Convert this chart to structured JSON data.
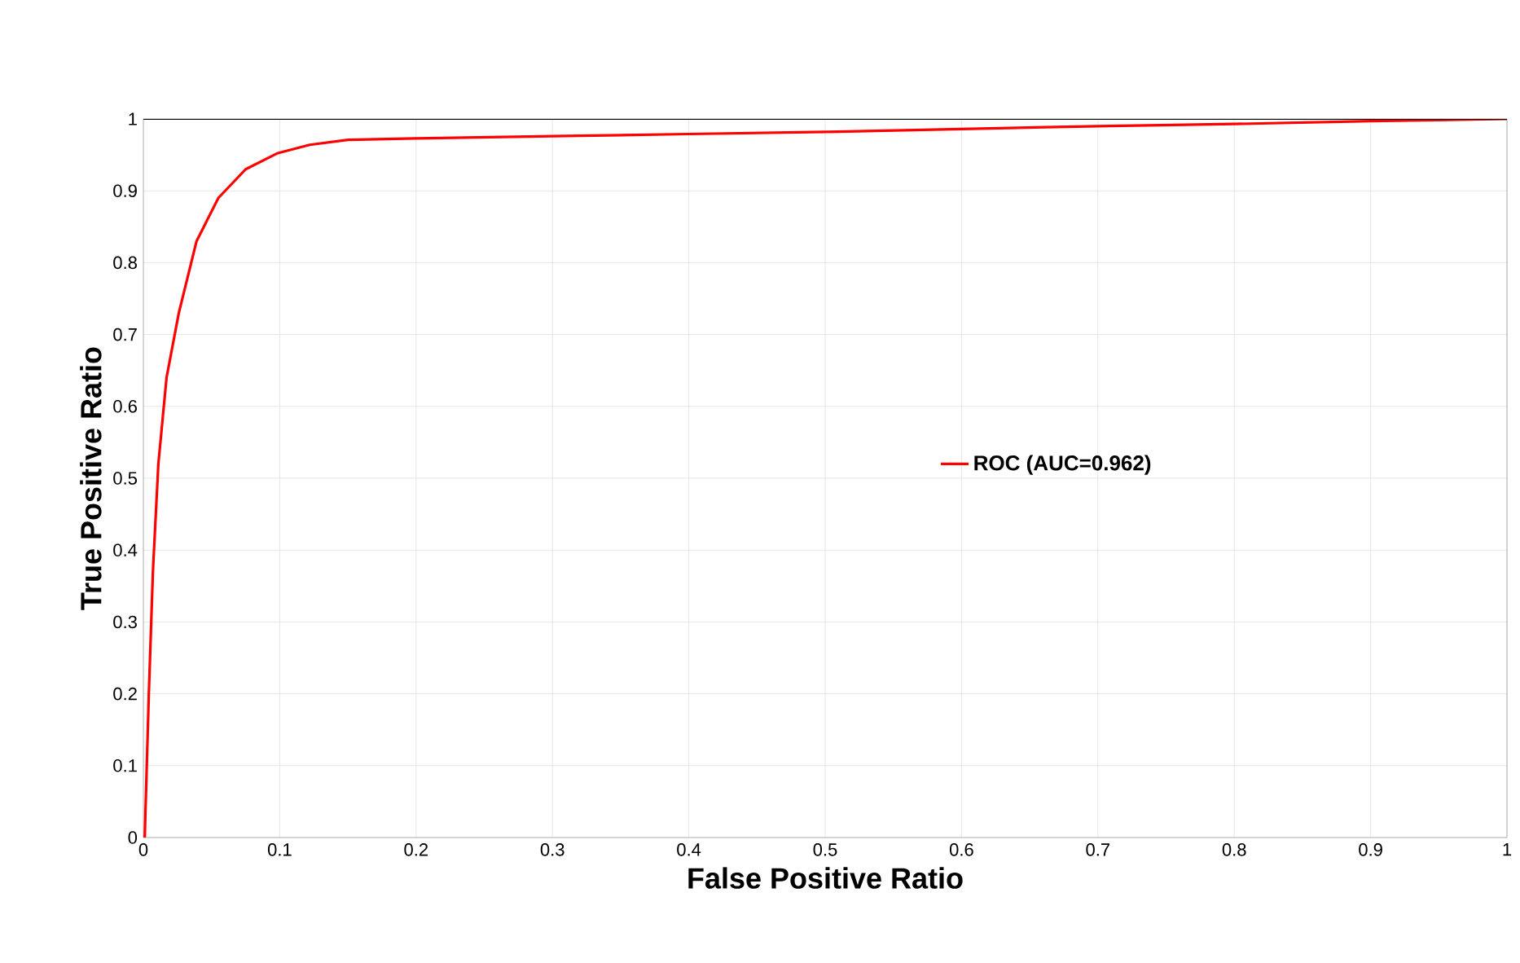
{
  "chart_data": {
    "type": "line",
    "xlabel": "False Positive Ratio",
    "ylabel": "True Positive Ratio",
    "xlim": [
      0,
      1
    ],
    "ylim": [
      0,
      1
    ],
    "xticks": [
      0,
      0.1,
      0.2,
      0.3,
      0.4,
      0.5,
      0.6,
      0.7,
      0.8,
      0.9,
      1
    ],
    "yticks": [
      0,
      0.1,
      0.2,
      0.3,
      0.4,
      0.5,
      0.6,
      0.7,
      0.8,
      0.9,
      1
    ],
    "grid": true,
    "legend": "right",
    "marker": "none",
    "line_style": "solid",
    "series": [
      {
        "name": "ROC (AUC=0.962)",
        "color": "#ff0000",
        "x": [
          0.001,
          0.004,
          0.007,
          0.011,
          0.017,
          0.026,
          0.039,
          0.055,
          0.075,
          0.098,
          0.122,
          0.15,
          0.2,
          0.3,
          0.4,
          0.5,
          0.6,
          0.7,
          0.8,
          0.9,
          1
        ],
        "values": [
          0,
          0.2,
          0.37,
          0.52,
          0.64,
          0.73,
          0.83,
          0.89,
          0.93,
          0.952,
          0.964,
          0.971,
          0.973,
          0.976,
          0.979,
          0.982,
          0.986,
          0.99,
          0.993,
          0.997,
          1
        ]
      }
    ]
  }
}
